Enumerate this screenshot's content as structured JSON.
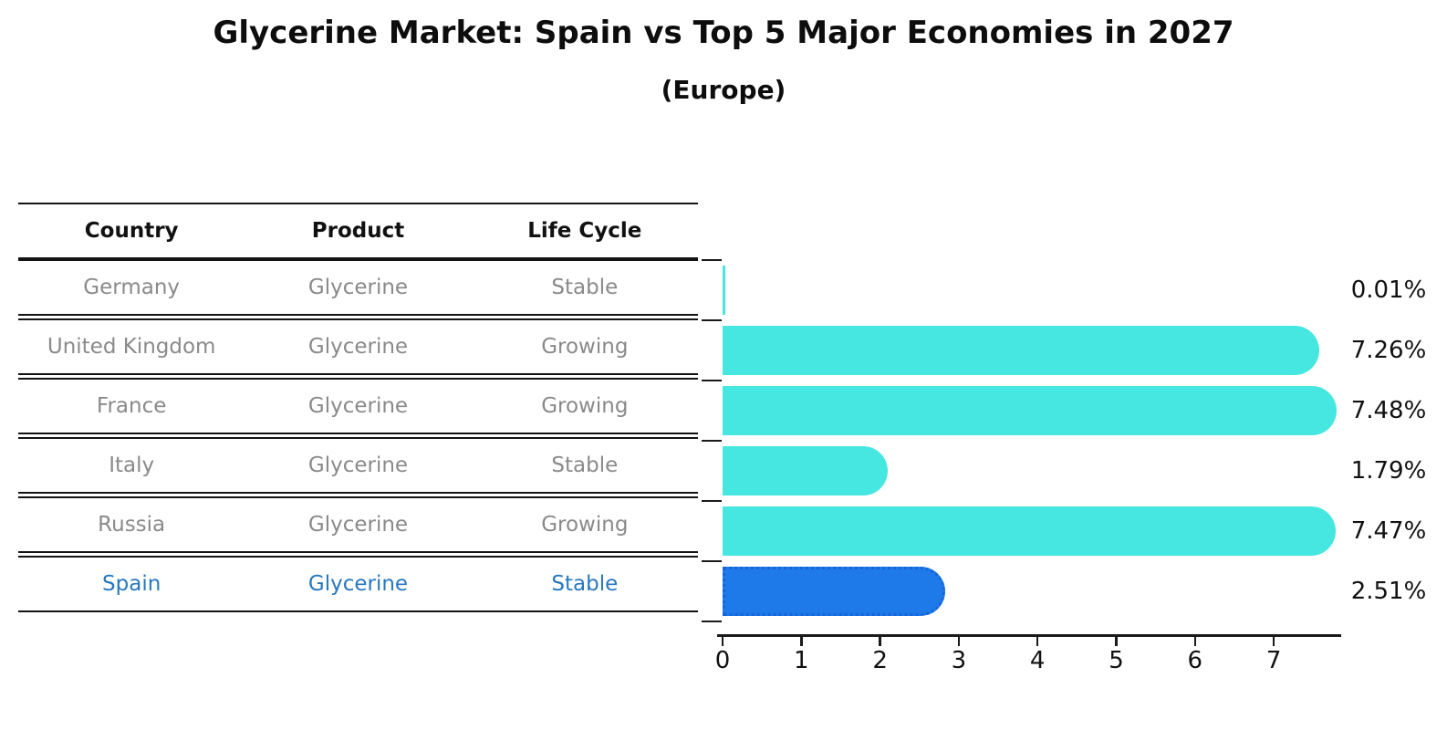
{
  "title": "Glycerine Market: Spain vs Top 5 Major Economies in 2027",
  "subtitle": "(Europe)",
  "table": {
    "headers": [
      "Country",
      "Product",
      "Life Cycle"
    ],
    "rows": [
      {
        "country": "Germany",
        "product": "Glycerine",
        "life_cycle": "Stable",
        "highlight": false
      },
      {
        "country": "United Kingdom",
        "product": "Glycerine",
        "life_cycle": "Growing",
        "highlight": false
      },
      {
        "country": "France",
        "product": "Glycerine",
        "life_cycle": "Growing",
        "highlight": false
      },
      {
        "country": "Italy",
        "product": "Glycerine",
        "life_cycle": "Stable",
        "highlight": false
      },
      {
        "country": "Russia",
        "product": "Glycerine",
        "life_cycle": "Growing",
        "highlight": false
      },
      {
        "country": "Spain",
        "product": "Glycerine",
        "life_cycle": "Stable",
        "highlight": true
      }
    ]
  },
  "chart_data": {
    "type": "bar",
    "orientation": "horizontal",
    "title": "Glycerine Market: Spain vs Top 5 Major Economies in 2027",
    "subtitle": "(Europe)",
    "categories": [
      "Germany",
      "United Kingdom",
      "France",
      "Italy",
      "Russia",
      "Spain"
    ],
    "values": [
      0.01,
      7.26,
      7.48,
      1.79,
      7.47,
      2.51
    ],
    "value_labels": [
      "0.01%",
      "7.26%",
      "7.48%",
      "1.79%",
      "7.47%",
      "2.51%"
    ],
    "xlabel": "",
    "ylabel": "",
    "xlim": [
      0,
      7.83
    ],
    "x_ticks": [
      0,
      1,
      2,
      3,
      4,
      5,
      6,
      7
    ],
    "grid": false,
    "legend": "none",
    "bar_color": "#46e6e1",
    "highlight_index": 5,
    "highlight_color": "#1e7ae8",
    "highlight_edge_color": "#1565d8",
    "highlight_edge_style": "dotted",
    "row_text_color": "#8a8a8a",
    "highlight_text_color": "#2878be"
  }
}
